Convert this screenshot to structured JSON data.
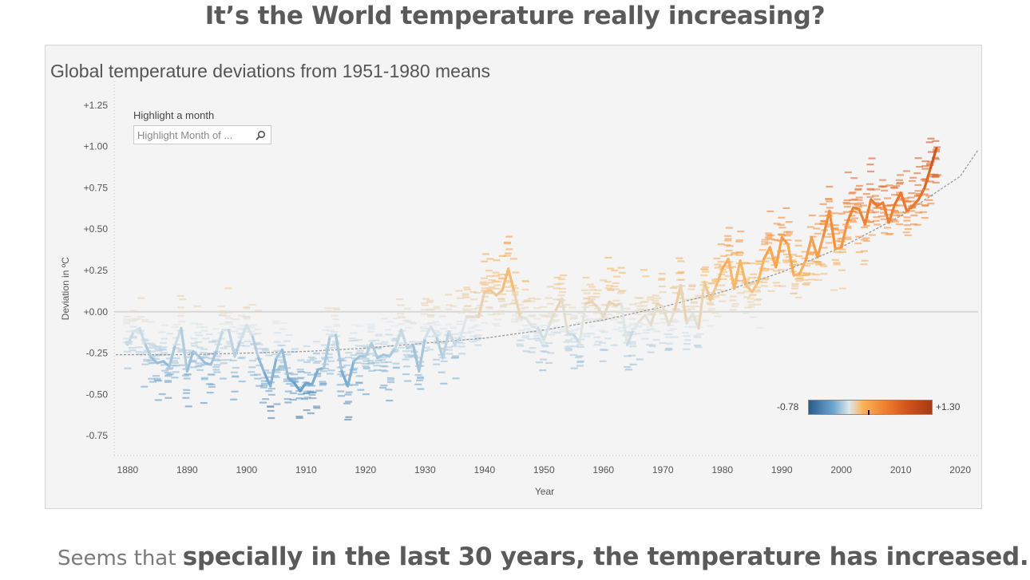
{
  "page_title": "It’s the World temperature really increasing?",
  "footer": {
    "prefix": "Seems that ",
    "emphasis": "specially in the last 30 years, the temperature has increased."
  },
  "filter": {
    "label": "Highlight a month",
    "placeholder": "Highlight Month of ...",
    "icon": "search-icon"
  },
  "color_legend": {
    "min_label": "-0.78",
    "max_label": "+1.30",
    "marker_value": 0.22,
    "colors": [
      "#2a5a8c",
      "#6ea6cf",
      "#dfe7ea",
      "#f9b25a",
      "#f07f2e",
      "#d2531b",
      "#a83a14"
    ]
  },
  "chart_data": {
    "type": "line",
    "title": "Global temperature deviations from 1951-1980 means",
    "xlabel": "Year",
    "ylabel": "Deviation in ºC",
    "xlim": [
      1878,
      2023
    ],
    "ylim": [
      -0.87,
      1.37
    ],
    "x_ticks": [
      1880,
      1890,
      1900,
      1910,
      1920,
      1930,
      1940,
      1950,
      1960,
      1970,
      1980,
      1990,
      2000,
      2010,
      2020
    ],
    "y_ticks": [
      {
        "value": 1.25,
        "label": "+1.25"
      },
      {
        "value": 1.0,
        "label": "+1.00"
      },
      {
        "value": 0.75,
        "label": "+0.75"
      },
      {
        "value": 0.5,
        "label": "+0.50"
      },
      {
        "value": 0.25,
        "label": "+0.25"
      },
      {
        "value": 0.0,
        "label": "+0.00"
      },
      {
        "value": -0.25,
        "label": "-0.25"
      },
      {
        "value": -0.5,
        "label": "-0.50"
      },
      {
        "value": -0.75,
        "label": "-0.75"
      }
    ],
    "grid": false,
    "legend": "bottom-right",
    "color_range": [
      -0.78,
      1.3
    ],
    "annual": {
      "x": [
        1880,
        1881,
        1882,
        1883,
        1884,
        1885,
        1886,
        1887,
        1888,
        1889,
        1890,
        1891,
        1892,
        1893,
        1894,
        1895,
        1896,
        1897,
        1898,
        1899,
        1900,
        1901,
        1902,
        1903,
        1904,
        1905,
        1906,
        1907,
        1908,
        1909,
        1910,
        1911,
        1912,
        1913,
        1914,
        1915,
        1916,
        1917,
        1918,
        1919,
        1920,
        1921,
        1922,
        1923,
        1924,
        1925,
        1926,
        1927,
        1928,
        1929,
        1930,
        1931,
        1932,
        1933,
        1934,
        1935,
        1936,
        1937,
        1938,
        1939,
        1940,
        1941,
        1942,
        1943,
        1944,
        1945,
        1946,
        1947,
        1948,
        1949,
        1950,
        1951,
        1952,
        1953,
        1954,
        1955,
        1956,
        1957,
        1958,
        1959,
        1960,
        1961,
        1962,
        1963,
        1964,
        1965,
        1966,
        1967,
        1968,
        1969,
        1970,
        1971,
        1972,
        1973,
        1974,
        1975,
        1976,
        1977,
        1978,
        1979,
        1980,
        1981,
        1982,
        1983,
        1984,
        1985,
        1986,
        1987,
        1988,
        1989,
        1990,
        1991,
        1992,
        1993,
        1994,
        1995,
        1996,
        1997,
        1998,
        1999,
        2000,
        2001,
        2002,
        2003,
        2004,
        2005,
        2006,
        2007,
        2008,
        2009,
        2010,
        2011,
        2012,
        2013,
        2014,
        2015,
        2016
      ],
      "y": [
        -0.2,
        -0.12,
        -0.1,
        -0.2,
        -0.28,
        -0.31,
        -0.3,
        -0.33,
        -0.2,
        -0.1,
        -0.36,
        -0.24,
        -0.27,
        -0.31,
        -0.32,
        -0.23,
        -0.11,
        -0.11,
        -0.27,
        -0.17,
        -0.08,
        -0.15,
        -0.28,
        -0.37,
        -0.45,
        -0.28,
        -0.23,
        -0.4,
        -0.43,
        -0.48,
        -0.43,
        -0.44,
        -0.35,
        -0.34,
        -0.15,
        -0.14,
        -0.36,
        -0.45,
        -0.3,
        -0.27,
        -0.27,
        -0.19,
        -0.28,
        -0.26,
        -0.27,
        -0.22,
        -0.11,
        -0.22,
        -0.2,
        -0.36,
        -0.16,
        -0.09,
        -0.16,
        -0.28,
        -0.12,
        -0.2,
        -0.15,
        -0.03,
        -0.03,
        -0.03,
        0.12,
        0.13,
        0.1,
        0.13,
        0.26,
        0.12,
        -0.03,
        -0.04,
        -0.09,
        -0.1,
        -0.17,
        -0.07,
        0.01,
        0.08,
        -0.13,
        -0.14,
        -0.19,
        0.05,
        0.06,
        0.03,
        -0.03,
        0.06,
        0.04,
        0.05,
        -0.2,
        -0.11,
        -0.06,
        -0.02,
        -0.08,
        0.05,
        0.03,
        -0.08,
        0.01,
        0.16,
        -0.07,
        -0.01,
        -0.1,
        0.18,
        0.07,
        0.16,
        0.26,
        0.32,
        0.14,
        0.31,
        0.16,
        0.12,
        0.18,
        0.32,
        0.39,
        0.27,
        0.45,
        0.41,
        0.22,
        0.23,
        0.31,
        0.45,
        0.33,
        0.46,
        0.61,
        0.38,
        0.39,
        0.54,
        0.63,
        0.62,
        0.53,
        0.68,
        0.64,
        0.66,
        0.54,
        0.65,
        0.72,
        0.61,
        0.64,
        0.68,
        0.75,
        0.87,
        0.99
      ]
    },
    "trend": {
      "x": [
        1878,
        1890,
        1900,
        1910,
        1920,
        1930,
        1940,
        1950,
        1960,
        1970,
        1980,
        1990,
        2000,
        2010,
        2020,
        2023
      ],
      "y": [
        -0.26,
        -0.26,
        -0.25,
        -0.24,
        -0.22,
        -0.19,
        -0.16,
        -0.11,
        -0.05,
        0.03,
        0.12,
        0.24,
        0.39,
        0.58,
        0.82,
        0.98
      ]
    }
  }
}
